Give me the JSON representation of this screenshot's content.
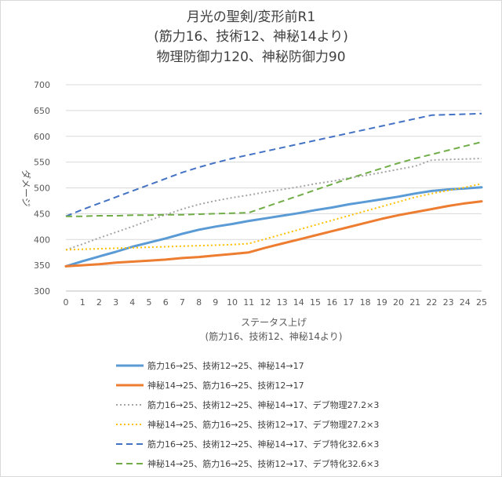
{
  "chart_data": {
    "type": "line",
    "title": [
      "月光の聖剣/変形前R1",
      "(筋力16、技術12、神秘14より)",
      "物理防御力120、神秘防御力90"
    ],
    "xlabel": [
      "ステータス上げ",
      "(筋力16、技術12、神秘14より)"
    ],
    "ylabel": "ダメージ",
    "ylim": [
      300,
      700
    ],
    "yticks": [
      300,
      350,
      400,
      450,
      500,
      550,
      600,
      650,
      700
    ],
    "x": [
      0,
      1,
      2,
      3,
      4,
      5,
      6,
      7,
      8,
      9,
      10,
      11,
      12,
      13,
      14,
      15,
      16,
      17,
      18,
      19,
      20,
      21,
      22,
      23,
      24,
      25
    ],
    "grid": true,
    "legend_position": "bottom",
    "series": [
      {
        "name": "筋力16→25、技術12→25、神秘14→17",
        "color": "#5B9BD5",
        "dash": "solid",
        "width": 3,
        "values": [
          348,
          358,
          367,
          376,
          386,
          394,
          402,
          411,
          419,
          425,
          430,
          436,
          441,
          446,
          451,
          457,
          462,
          468,
          473,
          478,
          483,
          489,
          494,
          497,
          499,
          501
        ]
      },
      {
        "name": "神秘14→25、筋力16→25、技術12→17",
        "color": "#ED7D31",
        "dash": "solid",
        "width": 3,
        "values": [
          348,
          350,
          352,
          355,
          357,
          359,
          361,
          364,
          366,
          369,
          372,
          375,
          384,
          392,
          400,
          408,
          416,
          424,
          432,
          440,
          447,
          453,
          459,
          465,
          470,
          474
        ]
      },
      {
        "name": "筋力16→25、技術12→25、神秘14→17、デブ物理27.2×3",
        "color": "#A5A5A5",
        "dash": "dot",
        "width": 2,
        "values": [
          380,
          391,
          403,
          414,
          425,
          437,
          448,
          459,
          468,
          475,
          481,
          486,
          492,
          497,
          502,
          508,
          513,
          519,
          524,
          530,
          536,
          542,
          554,
          555,
          556,
          557
        ]
      },
      {
        "name": "神秘14→25、筋力16→25、技術12→17、デブ物理27.2×3",
        "color": "#FFC000",
        "dash": "dot",
        "width": 2,
        "values": [
          380,
          381,
          382,
          383,
          384,
          385,
          386,
          387,
          388,
          389,
          390,
          392,
          401,
          410,
          419,
          428,
          437,
          446,
          455,
          464,
          473,
          482,
          489,
          495,
          501,
          508
        ]
      },
      {
        "name": "筋力16→25、技術12→25、神秘14→17、デブ特化32.6×3",
        "color": "#4472C4",
        "dash": "dash",
        "width": 2,
        "values": [
          445,
          458,
          470,
          482,
          494,
          506,
          518,
          530,
          540,
          549,
          557,
          564,
          571,
          578,
          585,
          592,
          599,
          606,
          613,
          620,
          627,
          634,
          641,
          642,
          643,
          644
        ]
      },
      {
        "name": "神秘14→25、筋力16→25、技術12→17、デブ特化32.6×3",
        "color": "#70AD47",
        "dash": "dash",
        "width": 2,
        "values": [
          445,
          445,
          446,
          446,
          447,
          447,
          448,
          448,
          449,
          450,
          451,
          452,
          463,
          474,
          485,
          496,
          507,
          518,
          528,
          538,
          548,
          557,
          565,
          573,
          581,
          589
        ]
      }
    ]
  }
}
